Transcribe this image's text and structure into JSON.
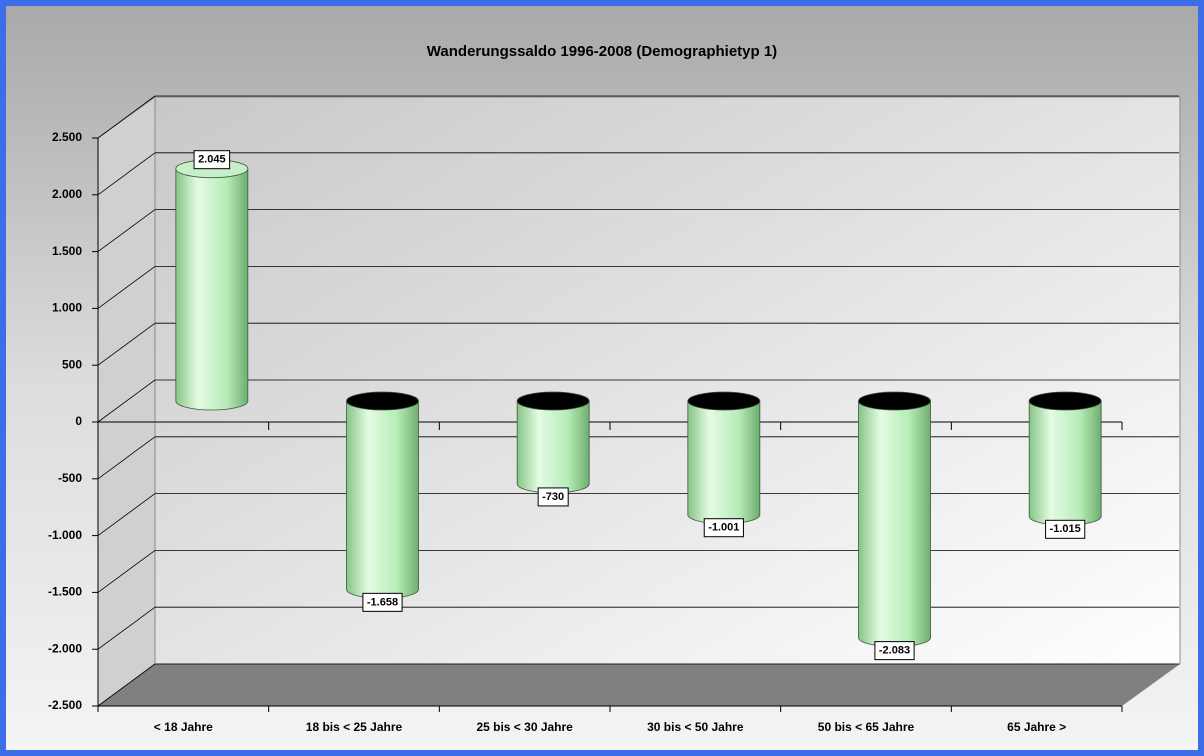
{
  "chart_data": {
    "type": "bar",
    "title": "Wanderungssaldo 1996-2008 (Demographietyp 1)",
    "categories": [
      "< 18 Jahre",
      "18 bis < 25 Jahre",
      "25 bis < 30 Jahre",
      "30 bis < 50 Jahre",
      "50 bis < 65 Jahre",
      "65 Jahre >"
    ],
    "values": [
      2045,
      -1658,
      -730,
      -1001,
      -2083,
      -1015
    ],
    "value_labels": [
      "2.045",
      "-1.658",
      "-730",
      "-1.001",
      "-2.083",
      "-1.015"
    ],
    "color": "#b8ecb8",
    "ylim": [
      -2500,
      2500
    ],
    "yticks": [
      {
        "value": -2500,
        "label": "-2.500"
      },
      {
        "value": -2000,
        "label": "-2.000"
      },
      {
        "value": -1500,
        "label": "-1.500"
      },
      {
        "value": -1000,
        "label": "-1.000"
      },
      -500,
      0,
      500,
      {
        "value": 1000,
        "label": "1.000"
      },
      {
        "value": 1500,
        "label": "1.500"
      },
      {
        "value": 2000,
        "label": "2.000"
      },
      {
        "value": 2500,
        "label": "2.500"
      }
    ],
    "grid": true
  }
}
